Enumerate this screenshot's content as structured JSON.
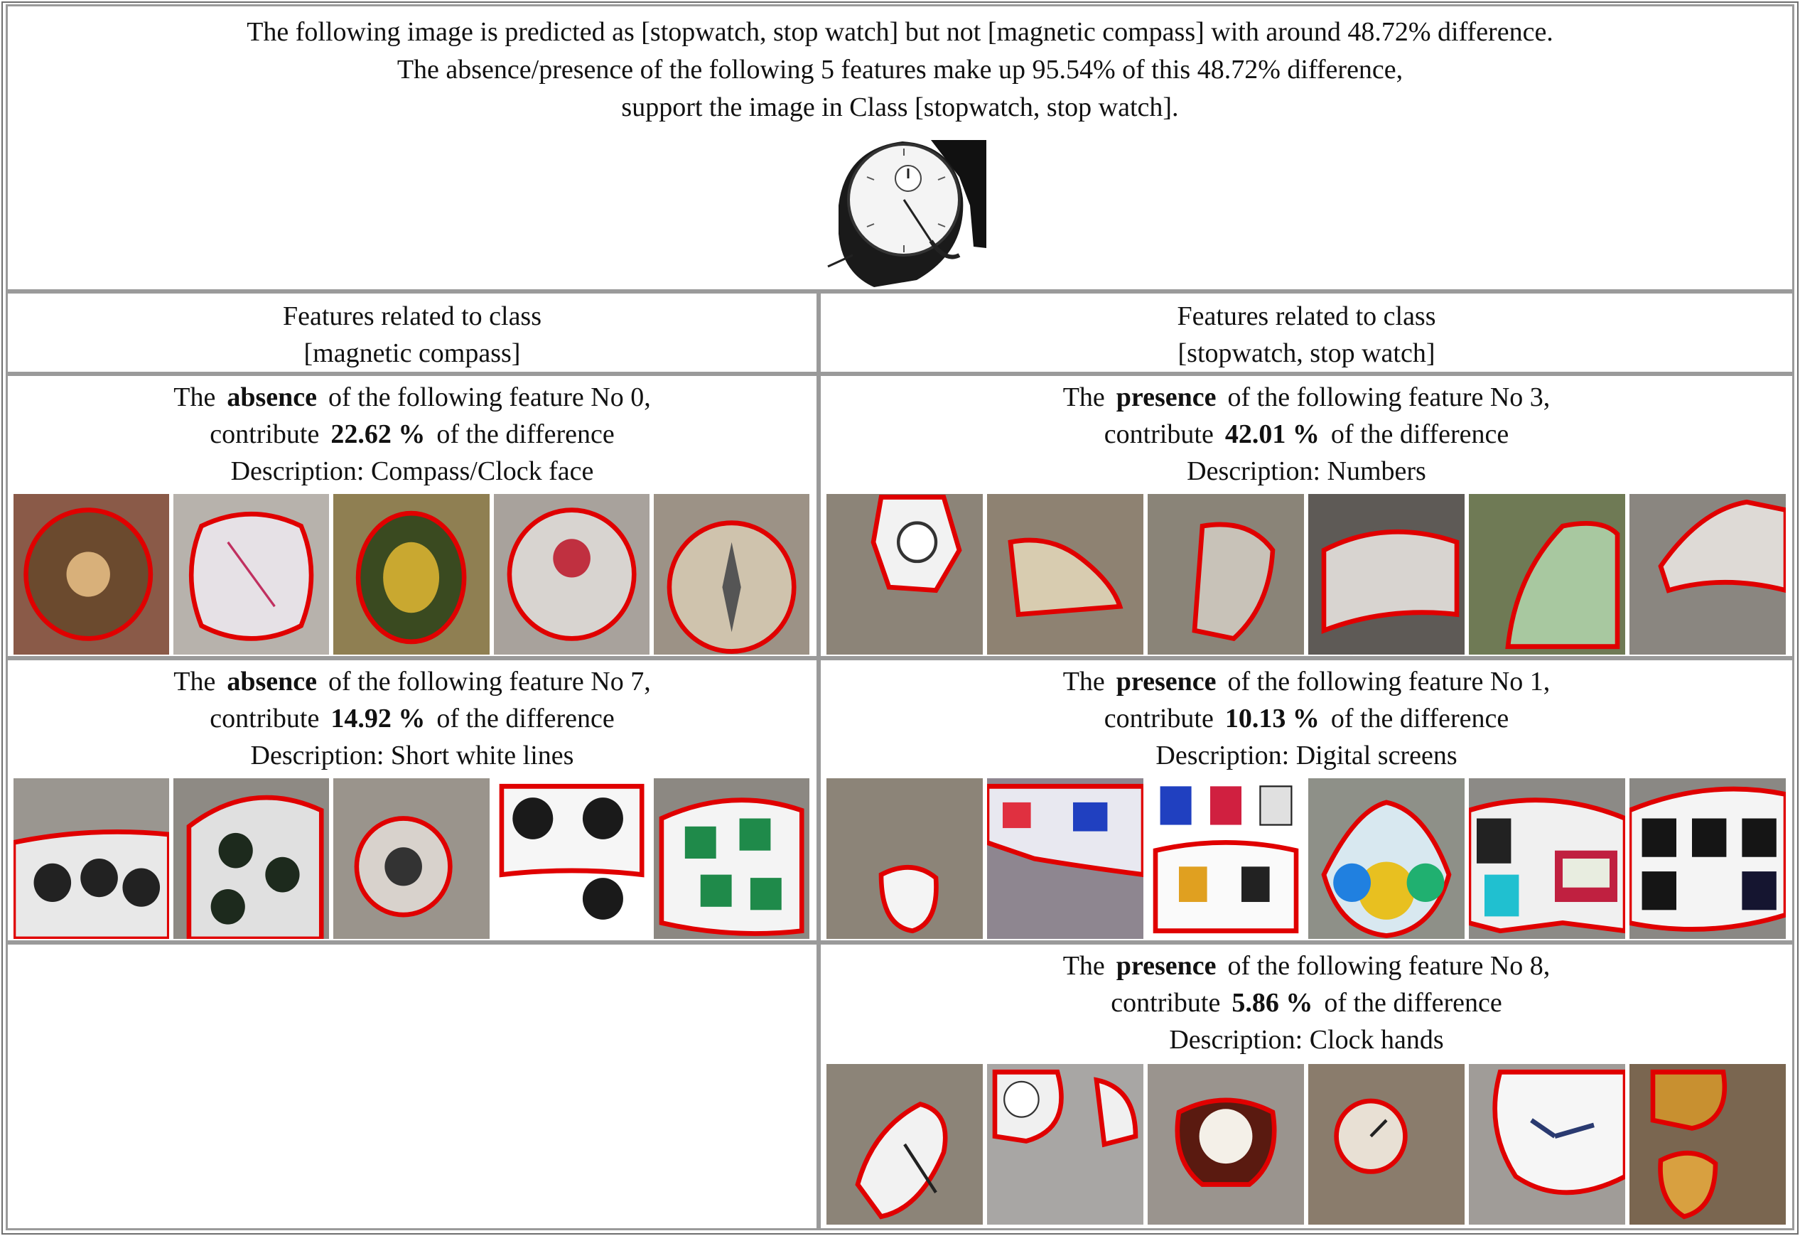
{
  "header": {
    "line1": "The following image is predicted as [stopwatch, stop watch] but not [magnetic compass] with around 48.72% difference.",
    "line2": "The absence/presence of the following 5 features make up 95.54% of this 48.72% difference,",
    "line3": "support the image in Class [stopwatch, stop watch].",
    "image_icon": "stopwatch-photo"
  },
  "columns": {
    "left": {
      "line1": "Features related to class",
      "line2": "[magnetic compass]"
    },
    "right": {
      "line1": "Features related to class",
      "line2": "[stopwatch, stop watch]"
    }
  },
  "features": {
    "left": [
      {
        "prefix": "The",
        "kind": "absence",
        "suffix": "of the following feature No 0,",
        "contrib_prefix": "contribute",
        "percent": "22.62 %",
        "contrib_suffix": "of the difference",
        "description": "Description: Compass/Clock face"
      },
      {
        "prefix": "The",
        "kind": "absence",
        "suffix": "of the following feature No 7,",
        "contrib_prefix": "contribute",
        "percent": "14.92 %",
        "contrib_suffix": "of the difference",
        "description": "Description: Short white lines"
      }
    ],
    "right": [
      {
        "prefix": "The",
        "kind": "presence",
        "suffix": "of the following feature No 3,",
        "contrib_prefix": "contribute",
        "percent": "42.01 %",
        "contrib_suffix": "of the difference",
        "description": "Description: Numbers"
      },
      {
        "prefix": "The",
        "kind": "presence",
        "suffix": "of the following feature No 1,",
        "contrib_prefix": "contribute",
        "percent": "10.13 %",
        "contrib_suffix": "of the difference",
        "description": "Description: Digital screens"
      },
      {
        "prefix": "The",
        "kind": "presence",
        "suffix": "of the following feature No 8,",
        "contrib_prefix": "contribute",
        "percent": "5.86 %",
        "contrib_suffix": "of the difference",
        "description": "Description: Clock hands"
      }
    ]
  },
  "colors": {
    "border": "#9a9a9a",
    "highlight_outline": "#e00000",
    "faded_overlay": "#8c8478"
  }
}
